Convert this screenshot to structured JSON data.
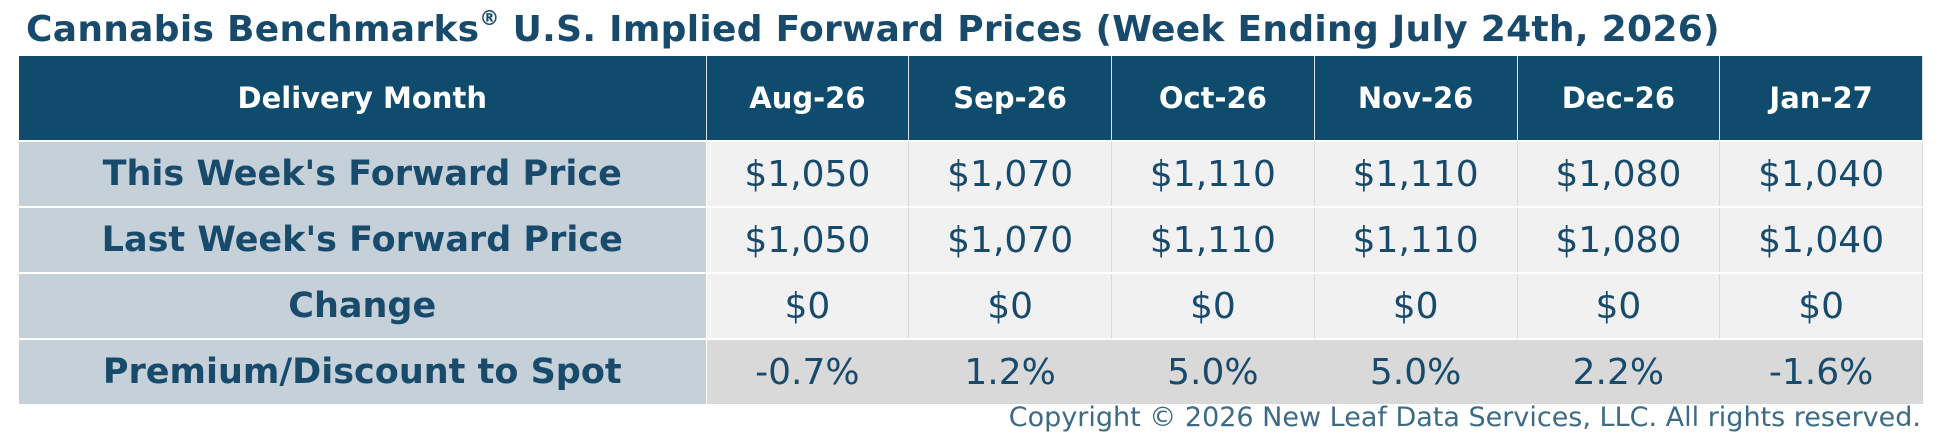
{
  "header": {
    "title": "Cannabis Benchmarks",
    "title_mark": "®",
    "title_rest": "U.S. Implied Forward Prices (Week Ending July 24th, 2026)"
  },
  "table": {
    "columns": [
      "Delivery Month",
      "Aug-26",
      "Sep-26",
      "Oct-26",
      "Nov-26",
      "Dec-26",
      "Jan-27"
    ],
    "rows": [
      [
        "This Week's Forward Price",
        "$1,050",
        "$1,070",
        "$1,110",
        "$1,110",
        "$1,080",
        "$1,040"
      ],
      [
        "Last Week's Forward Price",
        "$1,050",
        "$1,070",
        "$1,110",
        "$1,110",
        "$1,080",
        "$1,040"
      ],
      [
        "Change",
        "$0",
        "$0",
        "$0",
        "$0",
        "$0",
        "$0"
      ],
      [
        "Premium/Discount to Spot",
        "-0.7%",
        "1.2%",
        "5.0%",
        "5.0%",
        "2.2%",
        "-1.6%"
      ]
    ]
  },
  "footer": {
    "copyright": "Copyright © 2026 New Leaf Data Services, LLC. All rights reserved."
  }
}
